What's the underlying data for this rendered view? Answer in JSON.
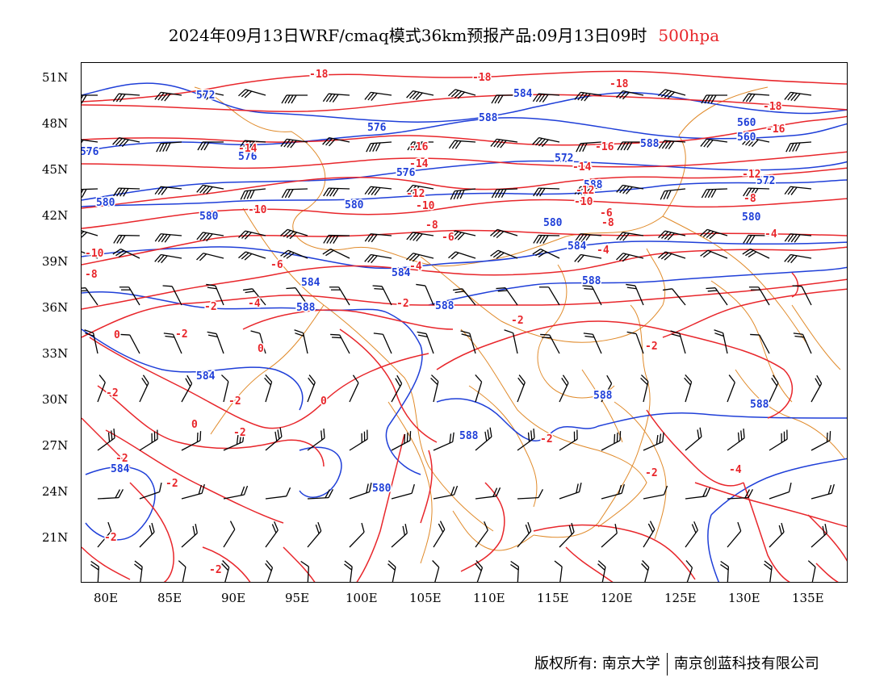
{
  "title": {
    "main": "2024年09月13日WRF/cmaq模式36km预报产品:09月13日09时",
    "level": "500hpa"
  },
  "axes": {
    "lat_labels": [
      "51N",
      "48N",
      "45N",
      "42N",
      "39N",
      "36N",
      "33N",
      "30N",
      "27N",
      "24N",
      "21N"
    ],
    "lon_labels": [
      "80E",
      "85E",
      "90E",
      "95E",
      "100E",
      "105E",
      "110E",
      "115E",
      "120E",
      "125E",
      "130E",
      "135E"
    ]
  },
  "colors": {
    "geopotential": "#1f3fd8",
    "temperature": "#e8262b",
    "boundaries": "#e08a2a",
    "wind": "#000000"
  },
  "height_labels": [
    "572",
    "584",
    "588",
    "576",
    "576",
    "572",
    "576",
    "588",
    "560",
    "580",
    "580",
    "588",
    "576",
    "580",
    "560",
    "580",
    "580",
    "584",
    "584",
    "584",
    "588",
    "588",
    "584",
    "588",
    "588",
    "584",
    "588",
    "572",
    "588",
    "580"
  ],
  "temp_labels": [
    "-18",
    "-18",
    "-18",
    "-18",
    "-16",
    "-14",
    "-16",
    "-14",
    "-14",
    "-16",
    "-12",
    "-12",
    "-12",
    "-10",
    "-10",
    "-10",
    "-8",
    "-10",
    "-8",
    "-6",
    "-8",
    "-8",
    "-6",
    "-4",
    "-4",
    "-6",
    "-4",
    "-2",
    "-4",
    "-2",
    "0",
    "-2",
    "0",
    "0",
    "-2",
    "-2",
    "0",
    "-2",
    "-2",
    "-2",
    "-2",
    "-2",
    "-2",
    "-2",
    "-2",
    "-2",
    "-4"
  ],
  "footer": {
    "left": "版权所有: 南京大学",
    "right": "南京创蓝科技有限公司"
  }
}
